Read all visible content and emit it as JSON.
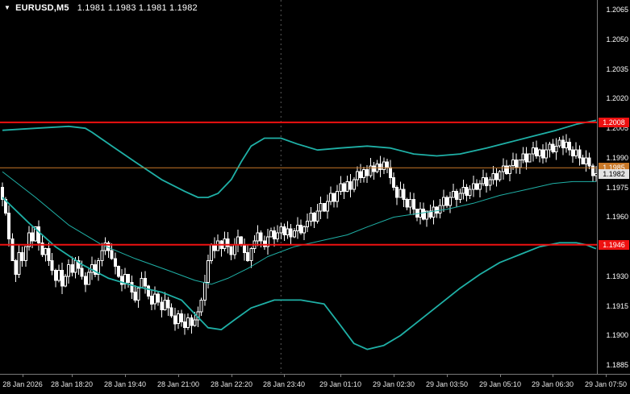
{
  "header": {
    "dropdown_icon": "▼",
    "symbol": "EURUSD,M5",
    "quote": "1.1981 1.1983 1.1981 1.1982"
  },
  "colors": {
    "background": "#000000",
    "foreground": "#ffffff",
    "band": "#1fb0a6",
    "separator": "#5a5a5a",
    "resistance": "#ee1111",
    "ask_line": "#c87828",
    "bid_label_bg": "#e2e2e2"
  },
  "chart_data": {
    "type": "candlestick",
    "title": "EURUSD,M5",
    "timeframe_minutes": 5,
    "y_axis": {
      "price_max": 1.207,
      "price_min": 1.1881,
      "ticks": [
        "1.2065",
        "1.2050",
        "1.2035",
        "1.2020",
        "1.2005",
        "1.1990",
        "1.1975",
        "1.1960",
        "1.1930",
        "1.1915",
        "1.1900",
        "1.1885"
      ]
    },
    "x_axis": {
      "left_pad": 3,
      "bar_spacing": 4.111,
      "labels": [
        "28 Jan 2026",
        "28 Jan 18:20",
        "28 Jan 19:40",
        "28 Jan 21:00",
        "28 Jan 22:20",
        "28 Jan 23:40",
        "29 Jan 01:10",
        "29 Jan 02:30",
        "29 Jan 03:50",
        "29 Jan 05:10",
        "29 Jan 06:30",
        "29 Jan 07:50"
      ],
      "positions_bar": [
        6,
        21,
        37,
        53,
        69,
        85,
        102,
        118,
        134,
        150,
        166,
        182
      ]
    },
    "day_separator_bar": 84,
    "levels": [
      {
        "name": "resistance-level",
        "price": 1.2008,
        "label": "1.2008",
        "color": "#ee1111",
        "width": 2
      },
      {
        "name": "support-level",
        "price": 1.1946,
        "label": "1.1946",
        "color": "#ee1111",
        "width": 2
      },
      {
        "name": "ask-line",
        "price": 1.1985,
        "label": "1.1985",
        "color": "#c87828",
        "width": 1
      }
    ],
    "bid": {
      "price": 1.1982,
      "label": "1.1982"
    },
    "candles": {
      "first_open": 1.1975,
      "wick": 0.0004,
      "closes": [
        1.1969,
        1.1962,
        1.1949,
        1.1938,
        1.1931,
        1.1942,
        1.1938,
        1.1945,
        1.1952,
        1.1948,
        1.1955,
        1.1947,
        1.1941,
        1.1944,
        1.1938,
        1.1933,
        1.1928,
        1.1933,
        1.1925,
        1.193,
        1.1936,
        1.1932,
        1.1938,
        1.1934,
        1.193,
        1.1926,
        1.1932,
        1.1936,
        1.1931,
        1.1938,
        1.1943,
        1.1947,
        1.1943,
        1.1939,
        1.1935,
        1.193,
        1.1926,
        1.1931,
        1.1927,
        1.1922,
        1.1918,
        1.1924,
        1.1929,
        1.1925,
        1.192,
        1.1916,
        1.1921,
        1.1917,
        1.1913,
        1.1918,
        1.1914,
        1.191,
        1.1906,
        1.1911,
        1.1907,
        1.1904,
        1.1909,
        1.1905,
        1.1908,
        1.1912,
        1.1918,
        1.1927,
        1.1938,
        1.1946,
        1.1943,
        1.1948,
        1.1944,
        1.1949,
        1.1945,
        1.1941,
        1.1946,
        1.195,
        1.1946,
        1.1942,
        1.1938,
        1.1944,
        1.1948,
        1.1952,
        1.1948,
        1.1945,
        1.195,
        1.1953,
        1.1949,
        1.1952,
        1.1955,
        1.1951,
        1.1954,
        1.195,
        1.1953,
        1.1956,
        1.1952,
        1.1955,
        1.1958,
        1.1962,
        1.1958,
        1.1963,
        1.1967,
        1.1963,
        1.1968,
        1.1972,
        1.1968,
        1.1973,
        1.1977,
        1.1973,
        1.1978,
        1.1974,
        1.1979,
        1.1983,
        1.198,
        1.1984,
        1.1981,
        1.1986,
        1.1983,
        1.1987,
        1.1984,
        1.1988,
        1.1985,
        1.198,
        1.1975,
        1.197,
        1.1974,
        1.1969,
        1.1965,
        1.1969,
        1.1964,
        1.196,
        1.1964,
        1.1959,
        1.1963,
        1.196,
        1.1965,
        1.1962,
        1.1966,
        1.197,
        1.1966,
        1.197,
        1.1973,
        1.1969,
        1.1972,
        1.1975,
        1.1971,
        1.1974,
        1.1977,
        1.1974,
        1.1977,
        1.198,
        1.1976,
        1.1979,
        1.1982,
        1.1979,
        1.1983,
        1.1986,
        1.1982,
        1.1986,
        1.1989,
        1.1985,
        1.1989,
        1.1992,
        1.1988,
        1.1992,
        1.1995,
        1.1991,
        1.1994,
        1.199,
        1.1994,
        1.1997,
        1.1993,
        1.1996,
        1.1999,
        1.1995,
        1.1998,
        1.1994,
        1.1991,
        1.1994,
        1.199,
        1.1987,
        1.199,
        1.1986,
        1.1981,
        1.1982
      ]
    },
    "bands": {
      "upper": [
        [
          0,
          1.2004
        ],
        [
          10,
          1.2005
        ],
        [
          20,
          1.2006
        ],
        [
          25,
          1.2005
        ],
        [
          27,
          1.2003
        ],
        [
          33,
          1.1996
        ],
        [
          40,
          1.1988
        ],
        [
          48,
          1.1979
        ],
        [
          55,
          1.1973
        ],
        [
          59,
          1.197
        ],
        [
          62,
          1.197
        ],
        [
          65,
          1.1972
        ],
        [
          69,
          1.1979
        ],
        [
          72,
          1.1988
        ],
        [
          75,
          1.1996
        ],
        [
          79,
          1.2
        ],
        [
          84,
          1.2
        ],
        [
          89,
          1.1997
        ],
        [
          95,
          1.1994
        ],
        [
          102,
          1.1995
        ],
        [
          110,
          1.1996
        ],
        [
          117,
          1.1995
        ],
        [
          124,
          1.1992
        ],
        [
          131,
          1.1991
        ],
        [
          138,
          1.1992
        ],
        [
          146,
          1.1995
        ],
        [
          153,
          1.1998
        ],
        [
          160,
          1.2001
        ],
        [
          167,
          1.2004
        ],
        [
          173,
          1.2007
        ],
        [
          179,
          1.2009
        ]
      ],
      "middle": [
        [
          0,
          1.1983
        ],
        [
          10,
          1.197
        ],
        [
          20,
          1.1956
        ],
        [
          30,
          1.1946
        ],
        [
          40,
          1.1939
        ],
        [
          50,
          1.1933
        ],
        [
          58,
          1.1928
        ],
        [
          63,
          1.1926
        ],
        [
          68,
          1.1929
        ],
        [
          74,
          1.1934
        ],
        [
          80,
          1.194
        ],
        [
          88,
          1.1945
        ],
        [
          96,
          1.1948
        ],
        [
          104,
          1.1951
        ],
        [
          110,
          1.1955
        ],
        [
          118,
          1.196
        ],
        [
          126,
          1.1962
        ],
        [
          134,
          1.1964
        ],
        [
          142,
          1.1967
        ],
        [
          150,
          1.1971
        ],
        [
          158,
          1.1974
        ],
        [
          166,
          1.1977
        ],
        [
          172,
          1.1978
        ],
        [
          179,
          1.1978
        ]
      ],
      "lower": [
        [
          0,
          1.197
        ],
        [
          8,
          1.1957
        ],
        [
          16,
          1.1945
        ],
        [
          24,
          1.1936
        ],
        [
          32,
          1.1929
        ],
        [
          40,
          1.1925
        ],
        [
          48,
          1.1922
        ],
        [
          54,
          1.1918
        ],
        [
          58,
          1.1911
        ],
        [
          62,
          1.1904
        ],
        [
          66,
          1.1903
        ],
        [
          70,
          1.1908
        ],
        [
          75,
          1.1914
        ],
        [
          82,
          1.1918
        ],
        [
          90,
          1.1918
        ],
        [
          97,
          1.1916
        ],
        [
          102,
          1.1905
        ],
        [
          106,
          1.1896
        ],
        [
          110,
          1.1893
        ],
        [
          115,
          1.1895
        ],
        [
          120,
          1.19
        ],
        [
          126,
          1.1908
        ],
        [
          132,
          1.1916
        ],
        [
          138,
          1.1924
        ],
        [
          144,
          1.1931
        ],
        [
          150,
          1.1937
        ],
        [
          156,
          1.1941
        ],
        [
          162,
          1.1945
        ],
        [
          168,
          1.1947
        ],
        [
          173,
          1.1947
        ],
        [
          176,
          1.1946
        ],
        [
          179,
          1.1944
        ]
      ]
    }
  }
}
